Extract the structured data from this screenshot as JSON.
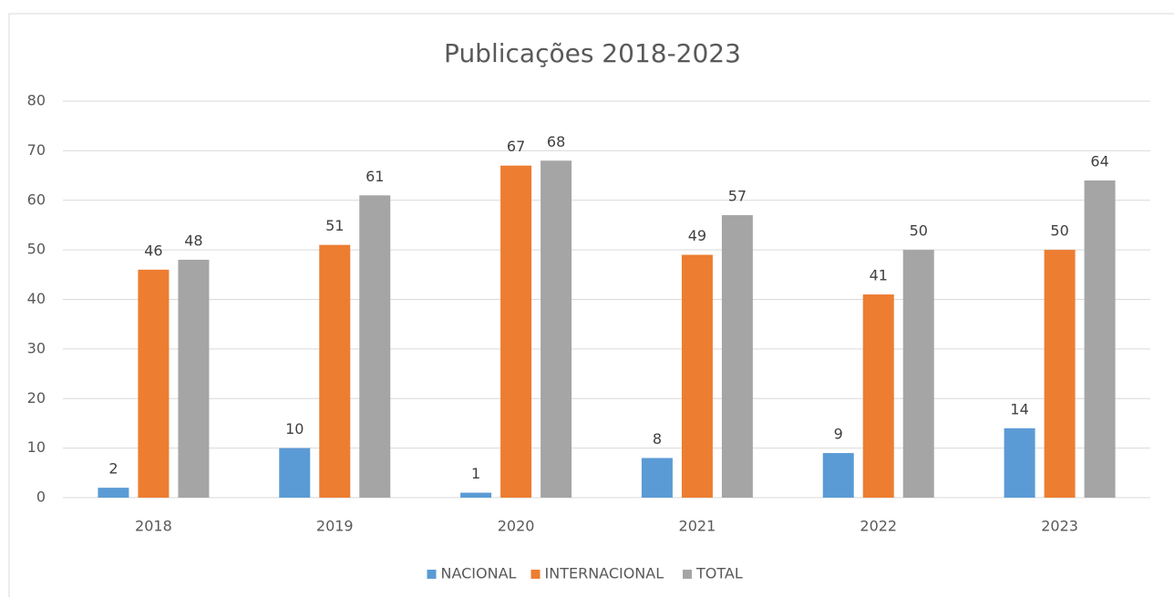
{
  "chart_data": {
    "type": "bar",
    "title": "Publicações 2018-2023",
    "categories": [
      "2018",
      "2019",
      "2020",
      "2021",
      "2022",
      "2023"
    ],
    "series": [
      {
        "name": "NACIONAL",
        "color": "#5b9bd5",
        "values": [
          2,
          10,
          1,
          8,
          9,
          14
        ]
      },
      {
        "name": "INTERNACIONAL",
        "color": "#ed7d31",
        "values": [
          46,
          51,
          67,
          49,
          41,
          50
        ]
      },
      {
        "name": "TOTAL",
        "color": "#a5a5a5",
        "values": [
          48,
          61,
          68,
          57,
          50,
          64
        ]
      }
    ],
    "ylim": [
      0,
      80
    ],
    "yticks": [
      0,
      10,
      20,
      30,
      40,
      50,
      60,
      70,
      80
    ],
    "grid": true,
    "legend": "bottom"
  }
}
